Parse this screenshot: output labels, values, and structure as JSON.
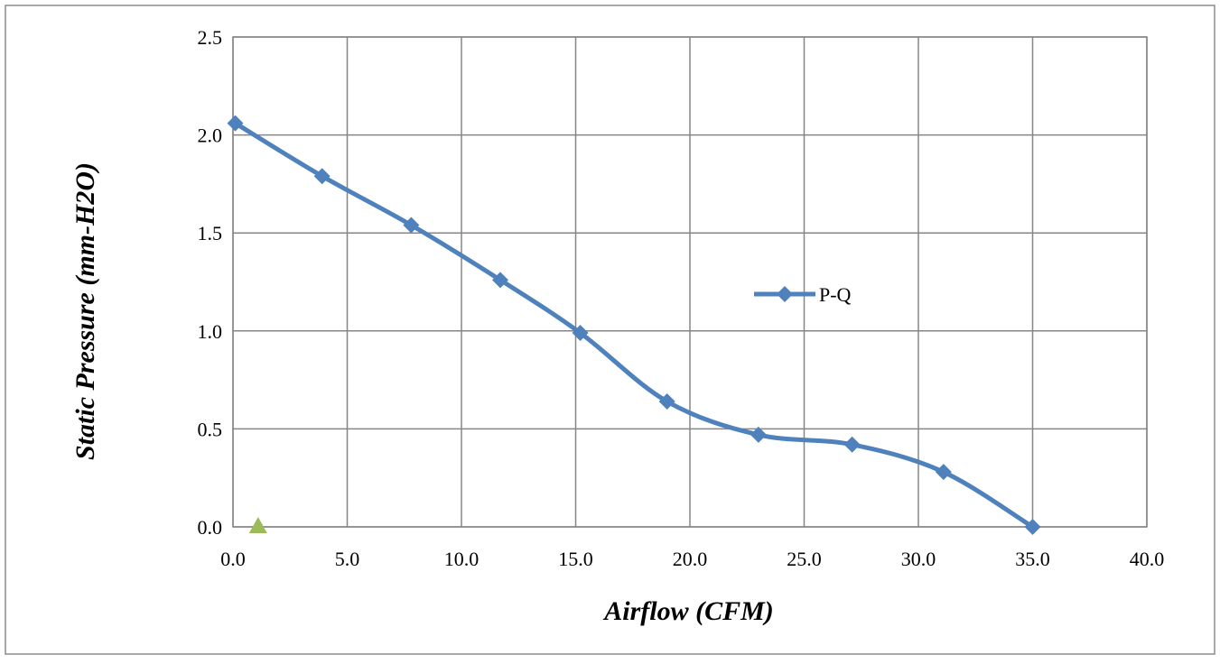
{
  "chart_data": {
    "type": "line",
    "xlabel": "Airflow (CFM)",
    "ylabel": "Static Pressure (mm-H2O)",
    "xlim": [
      0,
      40
    ],
    "ylim": [
      0,
      2.5
    ],
    "x_ticks": [
      "0.0",
      "5.0",
      "10.0",
      "15.0",
      "20.0",
      "25.0",
      "30.0",
      "35.0",
      "40.0"
    ],
    "y_ticks": [
      "0.0",
      "0.5",
      "1.0",
      "1.5",
      "2.0",
      "2.5"
    ],
    "grid": true,
    "legend_position": "center-right",
    "series": [
      {
        "name": "P-Q",
        "color": "#4F81BD",
        "marker": "diamond",
        "smooth": true,
        "x": [
          0.1,
          3.9,
          7.8,
          11.7,
          15.2,
          19.0,
          23.0,
          27.1,
          31.1,
          35.0
        ],
        "y": [
          2.06,
          1.79,
          1.54,
          1.26,
          0.99,
          0.64,
          0.47,
          0.42,
          0.28,
          0.0
        ]
      },
      {
        "color": "#9BBB59",
        "marker": "triangle",
        "x": [
          1.1
        ],
        "y": [
          0.0
        ]
      }
    ]
  }
}
